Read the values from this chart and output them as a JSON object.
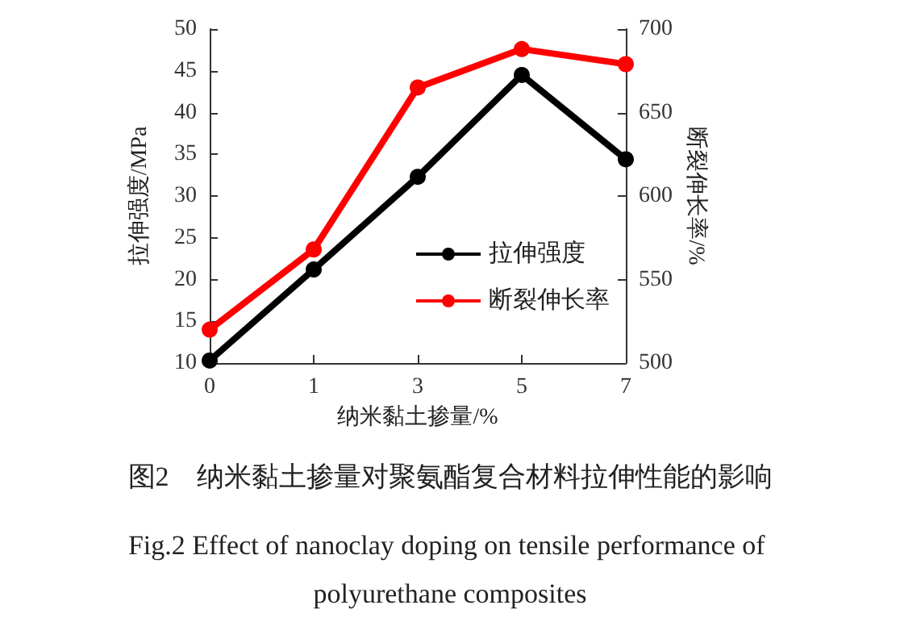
{
  "chart_data": {
    "type": "line",
    "title": "图2　纳米黏土掺量对聚氨酯复合材料拉伸性能的影响",
    "subtitle": "Fig.2 Effect of nanoclay doping on tensile performance of polyurethane composites",
    "xlabel": "纳米黏土掺量/%",
    "ylabel": "拉伸强度/MPa",
    "y2label": "断裂伸长率/%",
    "categories": [
      "0",
      "1",
      "3",
      "5",
      "7"
    ],
    "series": [
      {
        "name": "拉伸强度",
        "color": "#000000",
        "values": [
          10.3,
          21.2,
          32.3,
          44.5,
          34.4
        ]
      },
      {
        "name": "断裂伸长率",
        "color": "#ff0000",
        "axis": "y2",
        "values": [
          520,
          568,
          665,
          688,
          679
        ]
      }
    ],
    "ylim": [
      10,
      50
    ],
    "yticks": [
      10,
      15,
      20,
      25,
      30,
      35,
      40,
      45,
      50
    ],
    "y2lim": [
      500,
      700
    ],
    "y2ticks": [
      500,
      550,
      600,
      650,
      700
    ],
    "grid": false,
    "legend": "right",
    "marker": "circle",
    "line_style": "solid"
  }
}
